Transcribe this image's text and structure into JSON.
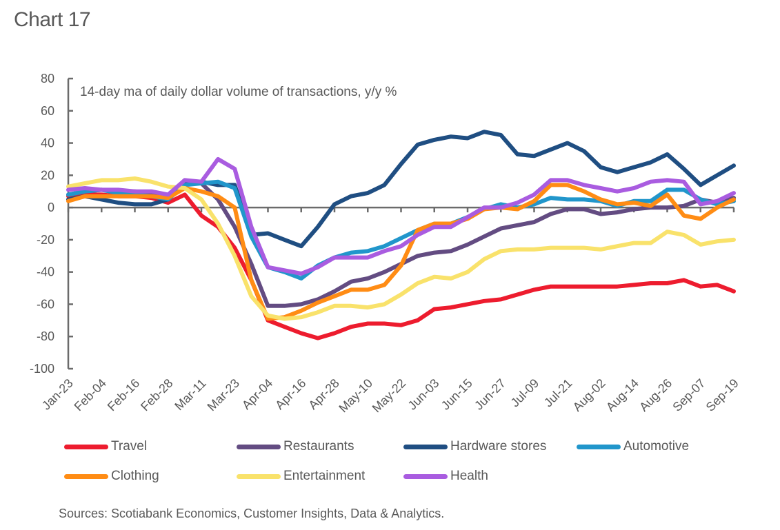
{
  "title": "Chart 17",
  "source": "Sources: Scotiabank Economics, Customer Insights, Data & Analytics.",
  "chart_data": {
    "type": "line",
    "title": "Chart 17",
    "subtitle": "14-day ma of daily dollar volume of transactions, y/y %",
    "xlabel": "",
    "ylabel": "",
    "ylim": [
      -100,
      80
    ],
    "yticks": [
      80,
      60,
      40,
      20,
      0,
      -20,
      -40,
      -60,
      -80,
      -100
    ],
    "x_tick_labels": [
      "Jan-23",
      "Feb-04",
      "Feb-16",
      "Feb-28",
      "Mar-11",
      "Mar-23",
      "Apr-04",
      "Apr-16",
      "Apr-28",
      "May-10",
      "May-22",
      "Jun-03",
      "Jun-15",
      "Jun-27",
      "Jul-09",
      "Jul-21",
      "Aug-02",
      "Aug-14",
      "Aug-26",
      "Sep-07",
      "Sep-19"
    ],
    "x_tick_days": [
      0,
      12,
      24,
      36,
      48,
      60,
      72,
      84,
      96,
      108,
      120,
      132,
      144,
      156,
      168,
      180,
      192,
      204,
      216,
      228,
      240
    ],
    "x_days": [
      0,
      6,
      12,
      18,
      24,
      30,
      36,
      42,
      48,
      54,
      60,
      66,
      72,
      78,
      84,
      90,
      96,
      102,
      108,
      114,
      120,
      126,
      132,
      138,
      144,
      150,
      156,
      162,
      168,
      174,
      180,
      186,
      192,
      198,
      204,
      210,
      216,
      222,
      228,
      234,
      240
    ],
    "x_note": "days since Jan-23",
    "grid": false,
    "legend_position": "bottom",
    "series": [
      {
        "name": "Travel",
        "color": "#ED1C2E",
        "values": [
          7,
          8,
          8,
          7,
          7,
          6,
          3,
          8,
          -5,
          -12,
          -25,
          -45,
          -70,
          -74,
          -78,
          -81,
          -78,
          -74,
          -72,
          -72,
          -73,
          -70,
          -63,
          -62,
          -60,
          -58,
          -57,
          -54,
          -51,
          -49,
          -49,
          -49,
          -49,
          -49,
          -48,
          -47,
          -47,
          -45,
          -49,
          -48,
          -52
        ]
      },
      {
        "name": "Restaurants",
        "color": "#634C82",
        "values": [
          8,
          10,
          11,
          10,
          10,
          9,
          7,
          17,
          15,
          5,
          -12,
          -35,
          -61,
          -61,
          -60,
          -57,
          -52,
          -46,
          -44,
          -40,
          -35,
          -30,
          -28,
          -27,
          -23,
          -18,
          -13,
          -11,
          -9,
          -4,
          -1,
          -1,
          -4,
          -3,
          -1,
          0,
          0,
          1,
          5,
          3,
          6
        ]
      },
      {
        "name": "Hardware stores",
        "color": "#1F4E82",
        "values": [
          5,
          7,
          5,
          3,
          2,
          2,
          5,
          15,
          16,
          14,
          14,
          -17,
          -16,
          -20,
          -24,
          -12,
          2,
          7,
          9,
          14,
          27,
          39,
          42,
          44,
          43,
          47,
          45,
          33,
          32,
          36,
          40,
          35,
          25,
          22,
          25,
          28,
          33,
          24,
          14,
          20,
          26
        ]
      },
      {
        "name": "Automotive",
        "color": "#2196CB",
        "values": [
          8,
          10,
          11,
          9,
          8,
          7,
          5,
          14,
          15,
          16,
          12,
          -18,
          -37,
          -40,
          -44,
          -36,
          -31,
          -28,
          -27,
          -24,
          -19,
          -14,
          -10,
          -10,
          -6,
          -1,
          2,
          0,
          2,
          6,
          5,
          5,
          4,
          1,
          4,
          4,
          11,
          11,
          5,
          2,
          4
        ]
      },
      {
        "name": "Clothing",
        "color": "#FF8C14",
        "values": [
          4,
          7,
          7,
          7,
          7,
          7,
          6,
          12,
          10,
          7,
          0,
          -45,
          -69,
          -68,
          -64,
          -59,
          -55,
          -51,
          -51,
          -48,
          -36,
          -14,
          -10,
          -10,
          -7,
          -1,
          0,
          -1,
          4,
          14,
          14,
          10,
          5,
          2,
          3,
          1,
          8,
          -5,
          -7,
          0,
          5
        ]
      },
      {
        "name": "Entertainment",
        "color": "#F9E26B",
        "values": [
          13,
          15,
          17,
          17,
          18,
          16,
          13,
          12,
          5,
          -10,
          -30,
          -55,
          -67,
          -69,
          -68,
          -65,
          -61,
          -61,
          -62,
          -60,
          -54,
          -47,
          -43,
          -44,
          -40,
          -32,
          -27,
          -26,
          -26,
          -25,
          -25,
          -25,
          -26,
          -24,
          -22,
          -22,
          -15,
          -17,
          -23,
          -21,
          -20
        ]
      },
      {
        "name": "Health",
        "color": "#A95CE0",
        "values": [
          11,
          12,
          11,
          11,
          10,
          10,
          8,
          17,
          16,
          30,
          24,
          -12,
          -37,
          -39,
          -41,
          -37,
          -31,
          -31,
          -31,
          -27,
          -24,
          -17,
          -12,
          -12,
          -6,
          0,
          0,
          3,
          8,
          17,
          17,
          14,
          12,
          10,
          12,
          16,
          17,
          16,
          2,
          4,
          9
        ]
      }
    ]
  }
}
